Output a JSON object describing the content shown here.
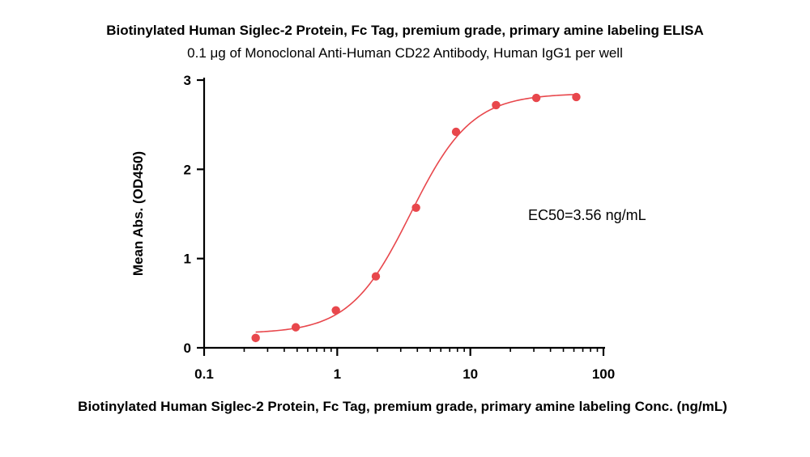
{
  "chart_data": {
    "type": "scatter",
    "title": "Biotinylated Human Siglec-2 Protein, Fc Tag, premium grade, primary amine labeling ELISA",
    "subtitle": "0.1 μg of Monoclonal Anti-Human CD22 Antibody, Human IgG1 per well",
    "xlabel": "Biotinylated Human Siglec-2 Protein, Fc Tag, premium grade, primary amine labeling Conc. (ng/mL)",
    "ylabel": "Mean Abs. (OD450)",
    "x_scale": "log",
    "xlim": [
      0.1,
      100
    ],
    "ylim": [
      0,
      3
    ],
    "x_ticks": [
      "0.1",
      "1",
      "10",
      "100"
    ],
    "y_ticks": [
      "0",
      "1",
      "2",
      "3"
    ],
    "grid": false,
    "point_color": "#e8474c",
    "curve_color": "#e8474c",
    "series": [
      {
        "x": [
          0.244,
          0.488,
          0.977,
          1.95,
          3.91,
          7.81,
          15.6,
          31.3,
          62.5
        ],
        "y": [
          0.11,
          0.23,
          0.42,
          0.8,
          1.57,
          2.42,
          2.72,
          2.8,
          2.81
        ]
      }
    ],
    "fit": {
      "bottom": 0.16,
      "top": 2.85,
      "ec50": 3.56,
      "hill": 1.9
    },
    "annotation": "EC50=3.56 ng/mL"
  }
}
